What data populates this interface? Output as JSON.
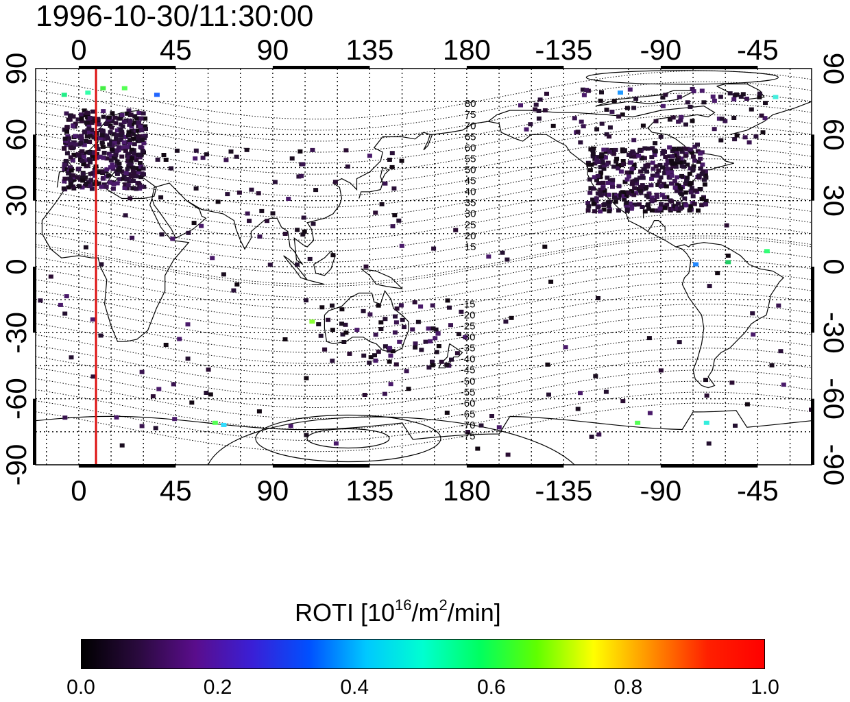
{
  "title": "1996-10-30/11:30:00",
  "map": {
    "top_lon_labels": [
      "0",
      "45",
      "90",
      "135",
      "180",
      "-135",
      "-90",
      "-45"
    ],
    "bottom_lon_labels": [
      "0",
      "45",
      "90",
      "135",
      "180",
      "-135",
      "-90",
      "-45"
    ],
    "left_lat_labels": [
      "90",
      "60",
      "30",
      "0",
      "-30",
      "-60",
      "-90"
    ],
    "right_lat_labels": [
      "90",
      "60",
      "30",
      "0",
      "-30",
      "-60",
      "-90"
    ],
    "contour_labels_north": [
      "80",
      "75",
      "70",
      "65",
      "60",
      "55",
      "50",
      "45",
      "40",
      "35",
      "30",
      "25",
      "20",
      "15"
    ],
    "contour_labels_south": [
      "-15",
      "-20",
      "-25",
      "-30",
      "-35",
      "-40",
      "-45",
      "-50",
      "-55",
      "-60",
      "-65",
      "-70",
      "-75"
    ],
    "meridian_marker_lon": 8,
    "meridian_marker_color": "#dd1111",
    "grid": "dotted",
    "lon_range": [
      -20,
      340
    ],
    "lat_range": [
      -90,
      90
    ]
  },
  "colorbar": {
    "label_main": "ROTI  [10",
    "label_sup1": "16",
    "label_mid": "/m",
    "label_sup2": "2",
    "label_end": "/min]",
    "ticks": [
      "0.0",
      "0.2",
      "0.4",
      "0.6",
      "0.8",
      "1.0"
    ],
    "range": [
      0.0,
      1.0
    ],
    "colors": [
      "#000000",
      "#2a0a3e",
      "#5a0d8c",
      "#3a1fd6",
      "#0050ff",
      "#00c8ff",
      "#00ffd0",
      "#00ff60",
      "#60ff00",
      "#ffff00",
      "#ff9000",
      "#ff2000",
      "#ff0000"
    ]
  }
}
